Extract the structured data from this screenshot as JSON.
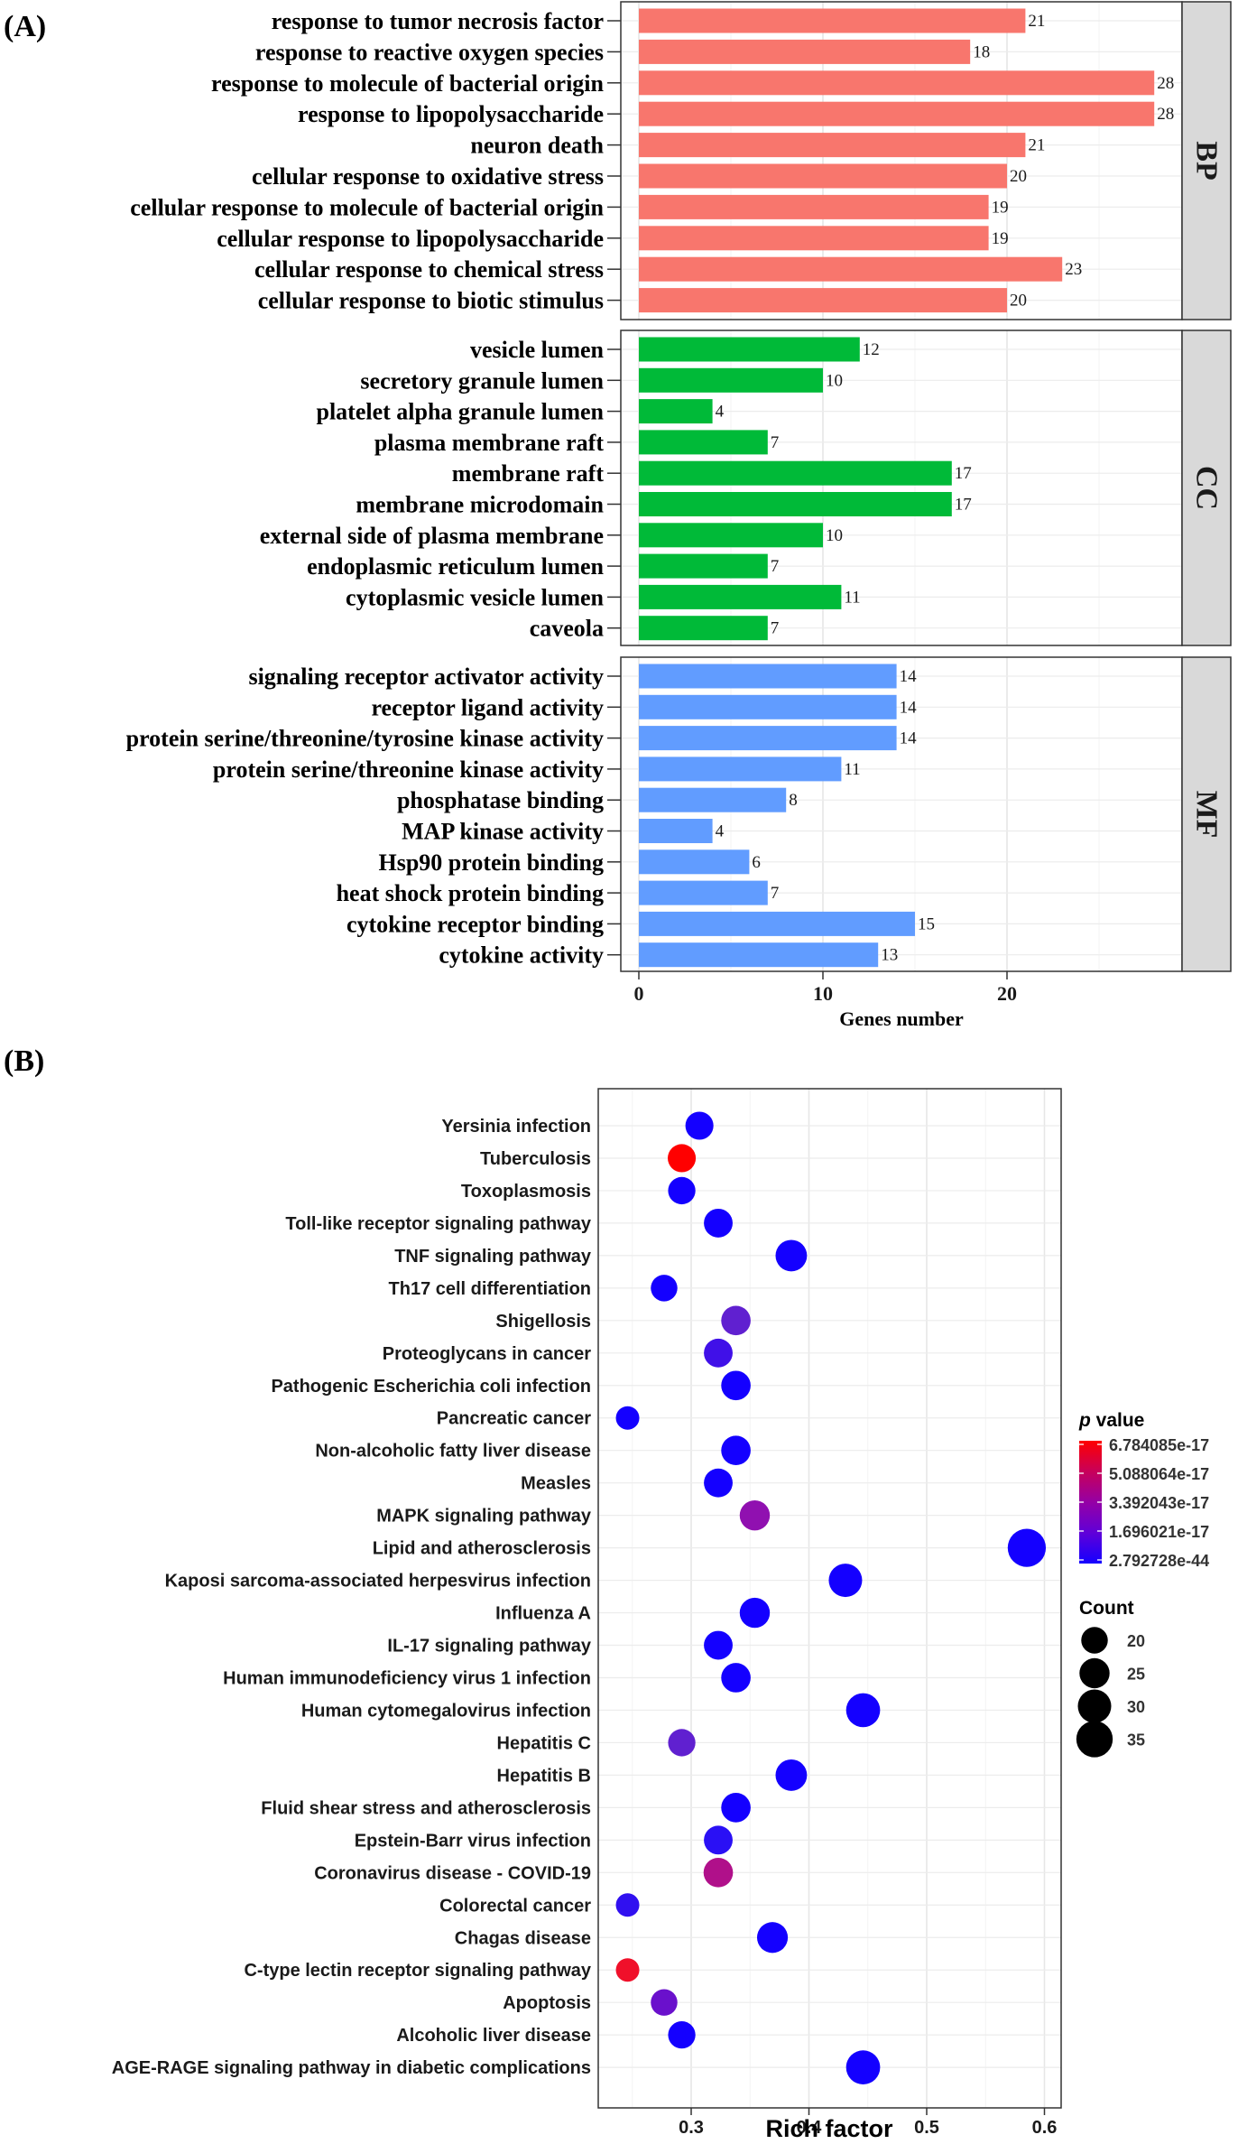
{
  "panel_a_label": "(A)",
  "panel_b_label": "(B)",
  "chart_data": [
    {
      "type": "bar",
      "orientation": "horizontal",
      "title": "",
      "xlabel": "Genes number",
      "ylabel": "",
      "xlim": [
        0,
        29
      ],
      "xticks": [
        0,
        10,
        20
      ],
      "grid": true,
      "facets": [
        {
          "name": "BP",
          "color": "#F8766D",
          "categories": [
            "response to tumor necrosis factor",
            "response to reactive oxygen species",
            "response to molecule of bacterial origin",
            "response to lipopolysaccharide",
            "neuron death",
            "cellular response to oxidative stress",
            "cellular response to molecule of bacterial origin",
            "cellular response to lipopolysaccharide",
            "cellular response to chemical stress",
            "cellular response to biotic stimulus"
          ],
          "values": [
            21,
            18,
            28,
            28,
            21,
            20,
            19,
            19,
            23,
            20
          ]
        },
        {
          "name": "CC",
          "color": "#00BA38",
          "categories": [
            "vesicle lumen",
            "secretory granule lumen",
            "platelet alpha granule lumen",
            "plasma membrane raft",
            "membrane raft",
            "membrane microdomain",
            "external side of plasma membrane",
            "endoplasmic reticulum lumen",
            "cytoplasmic vesicle lumen",
            "caveola"
          ],
          "values": [
            12,
            10,
            4,
            7,
            17,
            17,
            10,
            7,
            11,
            7
          ]
        },
        {
          "name": "MF",
          "color": "#619CFF",
          "categories": [
            "signaling receptor activator activity",
            "receptor ligand activity",
            "protein serine/threonine/tyrosine kinase activity",
            "protein serine/threonine kinase activity",
            "phosphatase binding",
            "MAP kinase activity",
            "Hsp90 protein binding",
            "heat shock protein binding",
            "cytokine receptor binding",
            "cytokine activity"
          ],
          "values": [
            14,
            14,
            14,
            11,
            8,
            4,
            6,
            7,
            15,
            13
          ]
        }
      ]
    },
    {
      "type": "scatter",
      "subtype": "bubble",
      "title": "",
      "xlabel": "Rich factor",
      "ylabel": "",
      "xlim": [
        0.235,
        0.6
      ],
      "xticks": [
        0.3,
        0.4,
        0.5,
        0.6
      ],
      "xtick_labels": [
        "0.3",
        "0.4",
        "0.5",
        "0.6"
      ],
      "grid": true,
      "color_legend": {
        "title_italic": "p",
        "title_rest": " value",
        "labels": [
          "6.784085e-17",
          "5.088064e-17",
          "3.392043e-17",
          "1.696021e-17",
          "2.792728e-44"
        ],
        "colors": [
          "#FF0000",
          "#C8005A",
          "#9500A5",
          "#6000D8",
          "#1400FF"
        ]
      },
      "size_legend": {
        "title": "Count",
        "labels": [
          "20",
          "25",
          "30",
          "35"
        ],
        "values": [
          20,
          25,
          30,
          35
        ]
      },
      "points": [
        {
          "term": "Yersinia infection",
          "rich_factor": 0.307,
          "count": 22,
          "color": "#1400FF"
        },
        {
          "term": "Tuberculosis",
          "rich_factor": 0.292,
          "count": 22,
          "color": "#FF0000"
        },
        {
          "term": "Toxoplasmosis",
          "rich_factor": 0.292,
          "count": 21,
          "color": "#1400FF"
        },
        {
          "term": "Toll-like receptor signaling pathway",
          "rich_factor": 0.323,
          "count": 23,
          "color": "#1400FF"
        },
        {
          "term": "TNF signaling pathway",
          "rich_factor": 0.385,
          "count": 27,
          "color": "#1400FF"
        },
        {
          "term": "Th17 cell differentiation",
          "rich_factor": 0.277,
          "count": 20,
          "color": "#1400FF"
        },
        {
          "term": "Shigellosis",
          "rich_factor": 0.338,
          "count": 24,
          "color": "#6020D0"
        },
        {
          "term": "Proteoglycans in cancer",
          "rich_factor": 0.323,
          "count": 23,
          "color": "#4010E8"
        },
        {
          "term": "Pathogenic Escherichia coli infection",
          "rich_factor": 0.338,
          "count": 24,
          "color": "#1400FF"
        },
        {
          "term": "Pancreatic cancer",
          "rich_factor": 0.246,
          "count": 16,
          "color": "#1400FF"
        },
        {
          "term": "Non-alcoholic fatty liver disease",
          "rich_factor": 0.338,
          "count": 24,
          "color": "#1400FF"
        },
        {
          "term": "Measles",
          "rich_factor": 0.323,
          "count": 23,
          "color": "#1400FF"
        },
        {
          "term": "MAPK signaling pathway",
          "rich_factor": 0.354,
          "count": 25,
          "color": "#9010B0"
        },
        {
          "term": "Lipid and atherosclerosis",
          "rich_factor": 0.585,
          "count": 38,
          "color": "#1400FF"
        },
        {
          "term": "Kaposi sarcoma-associated herpesvirus infection",
          "rich_factor": 0.431,
          "count": 30,
          "color": "#1400FF"
        },
        {
          "term": "Influenza A",
          "rich_factor": 0.354,
          "count": 25,
          "color": "#1400FF"
        },
        {
          "term": "IL-17 signaling pathway",
          "rich_factor": 0.323,
          "count": 23,
          "color": "#1400FF"
        },
        {
          "term": "Human immunodeficiency virus 1 infection",
          "rich_factor": 0.338,
          "count": 24,
          "color": "#1400FF"
        },
        {
          "term": "Human cytomegalovirus infection",
          "rich_factor": 0.446,
          "count": 31,
          "color": "#1400FF"
        },
        {
          "term": "Hepatitis C",
          "rich_factor": 0.292,
          "count": 21,
          "color": "#6020D0"
        },
        {
          "term": "Hepatitis B",
          "rich_factor": 0.385,
          "count": 27,
          "color": "#1400FF"
        },
        {
          "term": "Fluid shear stress and atherosclerosis",
          "rich_factor": 0.338,
          "count": 24,
          "color": "#1400FF"
        },
        {
          "term": "Epstein-Barr virus infection",
          "rich_factor": 0.323,
          "count": 23,
          "color": "#2A10F5"
        },
        {
          "term": "Coronavirus disease - COVID-19",
          "rich_factor": 0.323,
          "count": 24,
          "color": "#B0108A"
        },
        {
          "term": "Colorectal cancer",
          "rich_factor": 0.246,
          "count": 16,
          "color": "#3010F0"
        },
        {
          "term": "Chagas disease",
          "rich_factor": 0.369,
          "count": 26,
          "color": "#1400FF"
        },
        {
          "term": "C-type lectin receptor signaling pathway",
          "rich_factor": 0.246,
          "count": 16,
          "color": "#F0102A"
        },
        {
          "term": "Apoptosis",
          "rich_factor": 0.277,
          "count": 20,
          "color": "#6A10CC"
        },
        {
          "term": "Alcoholic liver disease",
          "rich_factor": 0.292,
          "count": 21,
          "color": "#1400FF"
        },
        {
          "term": "AGE-RAGE signaling pathway in diabetic complications",
          "rich_factor": 0.446,
          "count": 31,
          "color": "#1400FF"
        }
      ]
    }
  ]
}
